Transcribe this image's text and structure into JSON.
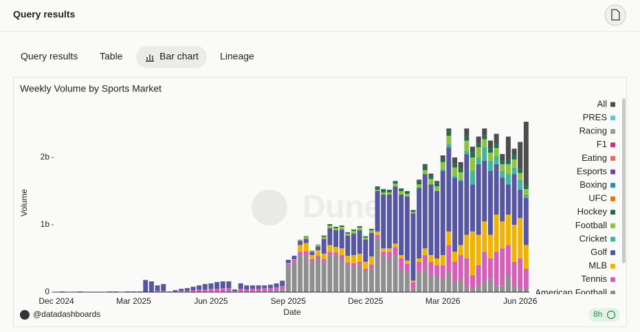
{
  "header": {
    "title": "Query results"
  },
  "tabs": [
    "Query results",
    "Table",
    "Bar chart",
    "Lineage"
  ],
  "footer": {
    "user": "@datadashboards",
    "age": "8h"
  },
  "chart_data": {
    "type": "bar",
    "stacked": true,
    "title": "Weekly Volume by Sports Market",
    "x_label": "Date",
    "y_label": "Volume",
    "watermark": "Dune",
    "categories": [
      "Dec 2024",
      null,
      null,
      null,
      null,
      null,
      null,
      null,
      null,
      null,
      null,
      null,
      null,
      "Mar 2025",
      null,
      null,
      null,
      null,
      null,
      null,
      null,
      null,
      null,
      null,
      null,
      null,
      "Jun 2025",
      null,
      null,
      null,
      null,
      null,
      null,
      null,
      null,
      null,
      null,
      null,
      null,
      "Sep 2025",
      null,
      null,
      null,
      null,
      null,
      null,
      null,
      null,
      null,
      null,
      null,
      null,
      "Dec 2025",
      null,
      null,
      null,
      null,
      null,
      null,
      null,
      null,
      null,
      null,
      null,
      null,
      "Mar 2026",
      null,
      null,
      null,
      null,
      null,
      null,
      null,
      null,
      null,
      null,
      null,
      null,
      "Jun 2026",
      null
    ],
    "ylim": [
      0,
      3
    ],
    "yticks": [
      0,
      {
        "value": 1,
        "label": "1b"
      },
      {
        "value": 2,
        "label": "2b"
      }
    ],
    "series": [
      {
        "name": "All",
        "color": "#4d4d4d",
        "values": [
          0,
          0,
          0,
          0,
          0,
          0,
          0,
          0,
          0,
          0,
          0,
          0,
          0,
          0,
          0,
          0,
          0,
          0,
          0,
          0,
          0,
          0,
          0,
          0,
          0,
          0,
          0,
          0,
          0,
          0,
          0,
          0,
          0,
          0,
          0,
          0,
          0,
          0,
          0,
          0,
          0,
          0,
          0,
          0,
          0,
          0,
          0,
          0,
          0,
          0,
          0,
          0,
          0,
          0,
          0,
          0,
          0,
          0,
          0,
          0,
          0,
          0.02,
          0.03,
          0.03,
          0.03,
          0.05,
          0.05,
          0.1,
          0.1,
          0.12,
          0.08,
          0.1,
          0.1,
          0.12,
          0.15,
          0.1,
          0.35,
          0.1,
          0.4,
          0.95
        ]
      },
      {
        "name": "PRES",
        "color": "#63c5c9",
        "values": [
          0,
          0,
          0,
          0,
          0,
          0,
          0,
          0,
          0,
          0,
          0,
          0,
          0,
          0,
          0,
          0,
          0,
          0,
          0,
          0,
          0,
          0,
          0,
          0,
          0,
          0,
          0,
          0,
          0,
          0,
          0,
          0,
          0,
          0,
          0,
          0,
          0,
          0,
          0,
          0,
          0,
          0,
          0,
          0,
          0,
          0,
          0,
          0,
          0,
          0,
          0,
          0,
          0,
          0,
          0,
          0,
          0,
          0,
          0,
          0,
          0,
          0,
          0,
          0,
          0,
          0,
          0,
          0,
          0,
          0,
          0,
          0,
          0,
          0,
          0,
          0,
          0,
          0,
          0,
          0
        ]
      },
      {
        "name": "Racing",
        "color": "#9c9c9c",
        "values": [
          0,
          0,
          0,
          0,
          0,
          0,
          0,
          0,
          0,
          0,
          0,
          0,
          0,
          0,
          0,
          0,
          0,
          0,
          0,
          0,
          0,
          0,
          0,
          0,
          0,
          0,
          0,
          0,
          0,
          0,
          0,
          0,
          0,
          0,
          0,
          0,
          0,
          0,
          0,
          0,
          0,
          0,
          0,
          0,
          0,
          0,
          0,
          0,
          0,
          0,
          0,
          0,
          0,
          0,
          0,
          0,
          0,
          0,
          0,
          0,
          0,
          0,
          0,
          0,
          0,
          0,
          0,
          0,
          0,
          0,
          0,
          0,
          0,
          0,
          0,
          0,
          0,
          0,
          0,
          0
        ]
      },
      {
        "name": "F1",
        "color": "#d62f7f",
        "values": [
          0,
          0,
          0,
          0,
          0,
          0,
          0,
          0,
          0,
          0,
          0,
          0,
          0,
          0,
          0,
          0,
          0,
          0,
          0,
          0,
          0,
          0,
          0,
          0,
          0,
          0,
          0,
          0,
          0,
          0,
          0,
          0,
          0,
          0,
          0,
          0,
          0,
          0,
          0,
          0,
          0,
          0,
          0,
          0,
          0,
          0,
          0,
          0,
          0,
          0,
          0,
          0,
          0,
          0,
          0,
          0,
          0,
          0,
          0,
          0,
          0,
          0,
          0,
          0,
          0,
          0,
          0,
          0,
          0,
          0,
          0,
          0,
          0,
          0,
          0,
          0,
          0,
          0,
          0,
          0
        ]
      },
      {
        "name": "Eating",
        "color": "#ec6a5c",
        "values": [
          0,
          0,
          0,
          0,
          0,
          0,
          0,
          0,
          0,
          0,
          0,
          0,
          0,
          0,
          0,
          0,
          0,
          0,
          0,
          0,
          0,
          0,
          0,
          0,
          0,
          0,
          0,
          0,
          0,
          0,
          0,
          0,
          0,
          0,
          0,
          0,
          0,
          0,
          0,
          0,
          0,
          0,
          0,
          0,
          0,
          0,
          0,
          0,
          0,
          0,
          0,
          0,
          0,
          0,
          0,
          0,
          0,
          0,
          0,
          0,
          0,
          0,
          0,
          0,
          0,
          0,
          0,
          0,
          0,
          0,
          0,
          0,
          0,
          0,
          0,
          0,
          0,
          0,
          0,
          0
        ]
      },
      {
        "name": "Esports",
        "color": "#6b4ea1",
        "values": [
          0,
          0,
          0,
          0,
          0,
          0,
          0,
          0,
          0,
          0,
          0,
          0,
          0,
          0,
          0,
          0,
          0,
          0,
          0,
          0,
          0,
          0,
          0,
          0,
          0,
          0,
          0,
          0,
          0,
          0,
          0,
          0,
          0,
          0,
          0,
          0,
          0,
          0,
          0,
          0,
          0,
          0,
          0,
          0,
          0,
          0,
          0,
          0,
          0,
          0,
          0,
          0,
          0,
          0,
          0,
          0,
          0,
          0,
          0,
          0,
          0,
          0,
          0,
          0,
          0,
          0,
          0,
          0,
          0,
          0,
          0,
          0,
          0,
          0,
          0,
          0,
          0,
          0,
          0,
          0
        ]
      },
      {
        "name": "Boxing",
        "color": "#2f8bbf",
        "values": [
          0,
          0,
          0,
          0,
          0,
          0,
          0,
          0,
          0,
          0,
          0,
          0,
          0,
          0,
          0,
          0,
          0,
          0,
          0,
          0,
          0,
          0,
          0,
          0,
          0,
          0,
          0,
          0,
          0,
          0,
          0,
          0,
          0,
          0,
          0,
          0,
          0,
          0,
          0,
          0,
          0,
          0,
          0,
          0,
          0,
          0,
          0,
          0,
          0,
          0,
          0,
          0,
          0,
          0,
          0,
          0,
          0,
          0,
          0,
          0,
          0,
          0,
          0,
          0,
          0,
          0,
          0,
          0,
          0,
          0,
          0,
          0,
          0,
          0,
          0,
          0,
          0,
          0,
          0,
          0
        ]
      },
      {
        "name": "UFC",
        "color": "#e27a10",
        "values": [
          0,
          0,
          0,
          0,
          0,
          0,
          0,
          0,
          0,
          0,
          0,
          0,
          0,
          0,
          0,
          0,
          0,
          0,
          0,
          0,
          0,
          0,
          0,
          0,
          0,
          0,
          0,
          0,
          0,
          0,
          0,
          0,
          0,
          0,
          0,
          0,
          0,
          0,
          0,
          0,
          0,
          0,
          0,
          0,
          0,
          0,
          0,
          0,
          0,
          0,
          0,
          0,
          0,
          0,
          0,
          0,
          0,
          0,
          0,
          0,
          0,
          0,
          0,
          0,
          0,
          0,
          0,
          0,
          0,
          0,
          0,
          0,
          0,
          0,
          0,
          0,
          0,
          0,
          0,
          0
        ]
      },
      {
        "name": "Hockey",
        "color": "#1e6e52",
        "values": [
          0,
          0,
          0,
          0,
          0,
          0,
          0,
          0,
          0,
          0,
          0,
          0,
          0,
          0,
          0,
          0,
          0,
          0,
          0,
          0,
          0,
          0,
          0,
          0,
          0,
          0,
          0,
          0,
          0,
          0,
          0,
          0,
          0,
          0,
          0,
          0,
          0,
          0,
          0,
          0,
          0,
          0,
          0.01,
          0,
          0,
          0.02,
          0.02,
          0.02,
          0.02,
          0.02,
          0.02,
          0.02,
          0.02,
          0.02,
          0.05,
          0.05,
          0.04,
          0.04,
          0.04,
          0.04,
          0.03,
          0.05,
          0.06,
          0.05,
          0.05,
          0.05,
          0.06,
          0.05,
          0.05,
          0.06,
          0.08,
          0.06,
          0.06,
          0.06,
          0.06,
          0.05,
          0.06,
          0.06,
          0.06,
          0.05
        ]
      },
      {
        "name": "Football",
        "color": "#8fc33f",
        "values": [
          0,
          0,
          0,
          0,
          0,
          0,
          0,
          0,
          0,
          0,
          0,
          0,
          0,
          0,
          0,
          0,
          0,
          0,
          0,
          0,
          0,
          0,
          0,
          0,
          0,
          0,
          0,
          0,
          0,
          0,
          0,
          0,
          0,
          0,
          0,
          0,
          0,
          0,
          0,
          0,
          0,
          0.02,
          0.03,
          0.02,
          0.03,
          0.03,
          0.04,
          0.03,
          0.04,
          0.03,
          0.04,
          0.04,
          0.03,
          0.04,
          0.02,
          0.03,
          0.03,
          0.04,
          0.05,
          0.04,
          0.02,
          0.05,
          0.06,
          0.08,
          0.07,
          0.1,
          0.12,
          0.12,
          0.1,
          0.15,
          0.2,
          0.15,
          0.12,
          0.12,
          0.12,
          0.1,
          0.15,
          0.12,
          0.1,
          0.08
        ]
      },
      {
        "name": "Cricket",
        "color": "#40b79d",
        "values": [
          0,
          0,
          0,
          0,
          0,
          0,
          0,
          0,
          0,
          0,
          0,
          0,
          0,
          0,
          0,
          0,
          0,
          0,
          0,
          0,
          0,
          0,
          0,
          0,
          0,
          0,
          0,
          0,
          0,
          0,
          0,
          0,
          0,
          0,
          0,
          0,
          0,
          0,
          0,
          0,
          0,
          0,
          0,
          0,
          0,
          0,
          0,
          0,
          0,
          0,
          0,
          0,
          0,
          0,
          0,
          0,
          0,
          0,
          0,
          0,
          0,
          0,
          0,
          0,
          0,
          0.03,
          0.05,
          0.03,
          0.03,
          0.05,
          0.2,
          0.1,
          0.2,
          0.15,
          0.12,
          0.1,
          0.15,
          0.1,
          0.15,
          0.05
        ]
      },
      {
        "name": "Golf",
        "color": "#5656a3",
        "values": [
          0,
          0.01,
          0,
          0,
          0.01,
          0,
          0,
          0,
          0,
          0.01,
          0.01,
          0,
          0.01,
          0.01,
          0.01,
          0.18,
          0.16,
          0.08,
          0.1,
          0.01,
          0.02,
          0.03,
          0.04,
          0.05,
          0.06,
          0.08,
          0.08,
          0.1,
          0.1,
          0.1,
          0.02,
          0.08,
          0.06,
          0.05,
          0.05,
          0.04,
          0.05,
          0.06,
          0.08,
          0.05,
          0.05,
          0.06,
          0.06,
          0.05,
          0.06,
          0.22,
          0.25,
          0.25,
          0.28,
          0.3,
          0.32,
          0.35,
          0.33,
          0.35,
          0.6,
          0.8,
          0.8,
          0.85,
          0.9,
          0.95,
          1.0,
          1.05,
          1.1,
          1.05,
          1.0,
          1.25,
          1.25,
          1.1,
          0.95,
          1.2,
          0.7,
          1.05,
          0.9,
          0.95,
          0.75,
          0.65,
          0.45,
          0.75,
          0.42,
          0.7
        ]
      },
      {
        "name": "MLB",
        "color": "#f0b400",
        "values": [
          0,
          0,
          0,
          0,
          0,
          0,
          0,
          0,
          0,
          0,
          0,
          0,
          0,
          0,
          0,
          0,
          0,
          0,
          0,
          0,
          0,
          0,
          0,
          0,
          0,
          0,
          0,
          0,
          0,
          0,
          0,
          0,
          0,
          0,
          0,
          0,
          0,
          0,
          0,
          0.01,
          0.01,
          0.1,
          0.12,
          0.06,
          0.08,
          0.08,
          0.1,
          0.08,
          0.1,
          0.1,
          0.12,
          0.12,
          0.1,
          0.12,
          0.05,
          0.05,
          0.05,
          0.05,
          0.05,
          0.05,
          0.02,
          0.05,
          0.1,
          0.1,
          0.1,
          0.15,
          0.2,
          0.15,
          0.15,
          0.35,
          0.65,
          0.45,
          0.45,
          0.35,
          0.55,
          0.4,
          0.45,
          0.55,
          0.6,
          0.35
        ]
      },
      {
        "name": "Tennis",
        "color": "#d660b9",
        "values": [
          0,
          0,
          0,
          0,
          0,
          0,
          0,
          0,
          0,
          0,
          0,
          0,
          0,
          0,
          0,
          0,
          0,
          0.02,
          0.02,
          0,
          0.01,
          0.02,
          0.02,
          0.03,
          0.04,
          0.04,
          0.05,
          0.05,
          0.06,
          0.06,
          0.02,
          0.05,
          0.04,
          0.04,
          0.04,
          0.04,
          0.04,
          0.04,
          0.05,
          0.02,
          0.03,
          0.05,
          0.06,
          0.04,
          0.04,
          0.04,
          0.05,
          0.04,
          0.05,
          0.04,
          0.05,
          0.05,
          0.05,
          0.06,
          0.05,
          0.05,
          0.1,
          0.12,
          0.15,
          0.12,
          0.1,
          0.15,
          0.2,
          0.2,
          0.15,
          0.2,
          0.4,
          0.3,
          0.35,
          0.4,
          0.2,
          0.3,
          0.45,
          0.3,
          0.5,
          0.55,
          0.45,
          0.35,
          0.45,
          0.3
        ]
      },
      {
        "name": "American Football",
        "color": "#8f8f8f",
        "values": [
          0,
          0,
          0,
          0,
          0,
          0,
          0,
          0,
          0,
          0,
          0,
          0,
          0,
          0,
          0,
          0,
          0,
          0,
          0,
          0,
          0,
          0,
          0,
          0,
          0,
          0,
          0,
          0,
          0,
          0,
          0,
          0,
          0,
          0.01,
          0.01,
          0.02,
          0.02,
          0.03,
          0.04,
          0.4,
          0.45,
          0.55,
          0.55,
          0.45,
          0.5,
          0.45,
          0.55,
          0.55,
          0.5,
          0.4,
          0.38,
          0.4,
          0.3,
          0.35,
          0.8,
          0.55,
          0.5,
          0.55,
          0.35,
          0.3,
          0.05,
          0.3,
          0.35,
          0.25,
          0.25,
          0.2,
          0.3,
          0.15,
          0.2,
          0.1,
          0.05,
          0.1,
          0.15,
          0.2,
          0.1,
          0.1,
          0.25,
          0.1,
          0.05,
          0.05
        ]
      }
    ]
  }
}
